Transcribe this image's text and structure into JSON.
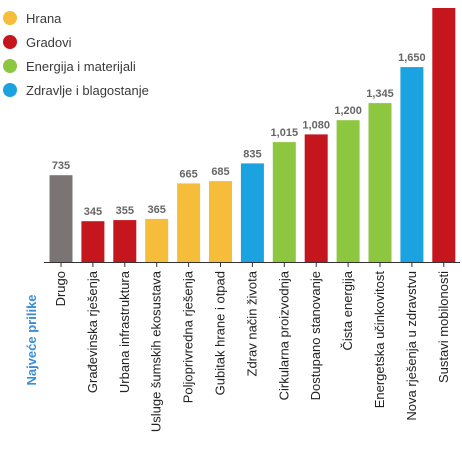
{
  "legend": [
    {
      "label": "Hrana",
      "color": "#f5bd39"
    },
    {
      "label": "Gradovi",
      "color": "#c4161c"
    },
    {
      "label": "Energija i materijali",
      "color": "#8dc63f"
    },
    {
      "label": "Zdravlje i blagostanje",
      "color": "#1aa3e0"
    }
  ],
  "chart_data": {
    "type": "bar",
    "ylabel": "Najveće prilike",
    "ylabel_color": "#3b8ed6",
    "value_label_color": "#666666",
    "ylim": [
      0,
      2150
    ],
    "categories": [
      "Drugo",
      "Građevinska rješenja",
      "Urbana infrastruktura",
      "Usluge šumskih ekosustava",
      "Poljoprivredna rješenja",
      "Gubitak hrane i otpad",
      "Zdrav način života",
      "Cirkularna  proizvodnja",
      "Dostupano stanovanje",
      "Čista energija",
      "Energetska učinkovitost",
      "Nova rješenja u zdravstvu",
      "Sustavi mobilonosti"
    ],
    "values": [
      735,
      345,
      355,
      365,
      665,
      685,
      835,
      1015,
      1080,
      1200,
      1345,
      1650,
      2150
    ],
    "value_labels": [
      "735",
      "345",
      "355",
      "365",
      "665",
      "685",
      "835",
      "1,015",
      "1,080",
      "1,200",
      "1,345",
      "1,650",
      ""
    ],
    "colors": [
      "#7a7474",
      "#c4161c",
      "#c4161c",
      "#f5bd39",
      "#f5bd39",
      "#f5bd39",
      "#1aa3e0",
      "#8dc63f",
      "#c4161c",
      "#8dc63f",
      "#8dc63f",
      "#1aa3e0",
      "#c4161c"
    ]
  }
}
